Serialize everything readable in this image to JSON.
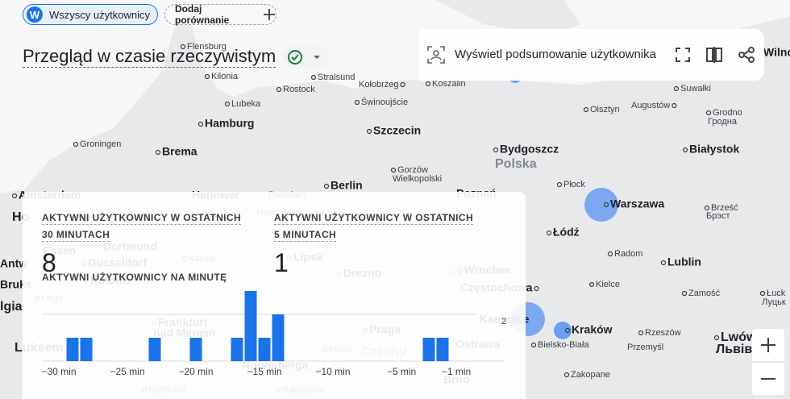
{
  "header": {
    "segment_avatar": "W",
    "segment_chip": "Wszyscy użytkownicy",
    "add_comparison": "Dodaj porównanie",
    "title": "Przegląd w czasie rzeczywistym"
  },
  "toolbar": {
    "user_snapshot": "Wyświetl podsumowanie użytkownika"
  },
  "map": {
    "labels": [
      "Flensburg",
      "Kilonia",
      "Stralsund",
      "Kołobrzeg",
      "Koszalin",
      "Rostock",
      "Lubeka",
      "Świnoujście",
      "Suwałki",
      "Olsztyn",
      "Augustów",
      "Grodno",
      "Гродна",
      "Hamburg",
      "Szczecin",
      "Groningen",
      "Brema",
      "Bydgoszcz",
      "Białystok",
      "Polska",
      "Gorzów",
      "Wielkopolski",
      "Berlin",
      "Płock",
      "Amsterdam",
      "Hanower",
      "Poznań",
      "Warszawa",
      "Brześć",
      "Брэст",
      "Łódź",
      "Radom",
      "Lublin",
      "Wrocław",
      "Częstochowa",
      "Kielce",
      "Zamość",
      "Łuck",
      "Луцьк",
      "Katowice",
      "Kraków",
      "Rzeszów",
      "Bielsko-Biała",
      "Przemyśl",
      "Lwów",
      "Львів",
      "Ostrawa",
      "Zakopane",
      "Brno",
      "Wilno",
      "Dortmund",
      "Essen",
      "Düsseldorf",
      "Kolonia",
      "Kassel",
      "Lipsk",
      "Drezno",
      "Praga",
      "Czechy",
      "Frankfurt",
      "nad Menem",
      "Pilzno",
      "Norymberga",
      "Karlsruhe",
      "Ratyzbona",
      "Magdeburg",
      "Liege",
      "Antw",
      "Bruks",
      "lgia",
      "Ho",
      "Luksem",
      "Poczdam"
    ]
  },
  "summary": {
    "active_30_label": [
      "AKTYWNI UŻYTKOWNICY W OSTATNICH",
      "30 MINUTACH"
    ],
    "active_30_value": 8,
    "active_5_label": [
      "AKTYWNI UŻYTKOWNICY W OSTATNICH",
      "5 MINUTACH"
    ],
    "active_5_value": 1
  },
  "chart_data": {
    "type": "bar",
    "title": "AKTYWNI UŻYTKOWNICY NA MINUTĘ",
    "categories": [
      "−30 min",
      null,
      null,
      null,
      null,
      "−25 min",
      null,
      null,
      null,
      null,
      "−20 min",
      null,
      null,
      null,
      null,
      "−15 min",
      null,
      null,
      null,
      null,
      "−10 min",
      null,
      null,
      null,
      null,
      "−5 min",
      null,
      null,
      null,
      "−1 min"
    ],
    "values": [
      0,
      1,
      1,
      0,
      0,
      0,
      0,
      1,
      0,
      0,
      1,
      0,
      0,
      1,
      3,
      1,
      2,
      0,
      0,
      0,
      0,
      0,
      0,
      0,
      0,
      0,
      0,
      1,
      1,
      0
    ],
    "color": "#1a73e8",
    "ylim": [
      0,
      3
    ],
    "yticks": [
      2
    ],
    "grid": true
  }
}
